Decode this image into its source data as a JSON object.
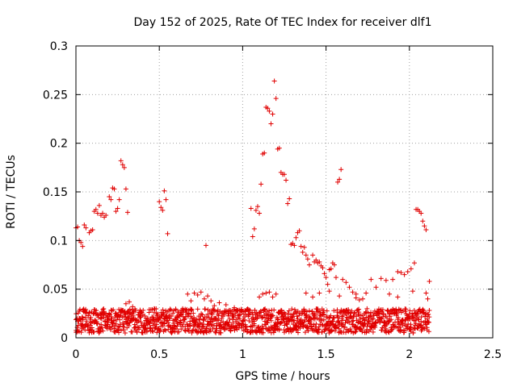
{
  "chart_data": {
    "type": "scatter",
    "title": "Day 152 of 2025, Rate Of TEC Index for receiver dlf1",
    "xlabel": "GPS time / hours",
    "ylabel": "ROTI / TECUs",
    "xlim": [
      0,
      2.5
    ],
    "ylim": [
      0,
      0.3
    ],
    "x_ticks": [
      0,
      0.5,
      1,
      1.5,
      2,
      2.5
    ],
    "x_tick_labels": [
      "0",
      "0.5",
      "1",
      "1.5",
      "2",
      "2.5"
    ],
    "y_ticks": [
      0,
      0.05,
      0.1,
      0.15,
      0.2,
      0.25,
      0.3
    ],
    "y_tick_labels": [
      "0",
      "0.05",
      "0.1",
      "0.15",
      "0.2",
      "0.25",
      "0.3"
    ],
    "grid": true,
    "marker": "plus",
    "marker_color": "#e00000",
    "series": [
      {
        "name": "ROTI",
        "points": [
          [
            0.0,
            0.113
          ],
          [
            0.01,
            0.114
          ],
          [
            0.02,
            0.1
          ],
          [
            0.03,
            0.098
          ],
          [
            0.04,
            0.094
          ],
          [
            0.05,
            0.116
          ],
          [
            0.06,
            0.113
          ],
          [
            0.08,
            0.108
          ],
          [
            0.09,
            0.11
          ],
          [
            0.1,
            0.111
          ],
          [
            0.11,
            0.13
          ],
          [
            0.12,
            0.132
          ],
          [
            0.13,
            0.128
          ],
          [
            0.14,
            0.136
          ],
          [
            0.15,
            0.126
          ],
          [
            0.16,
            0.128
          ],
          [
            0.17,
            0.124
          ],
          [
            0.18,
            0.126
          ],
          [
            0.2,
            0.145
          ],
          [
            0.21,
            0.142
          ],
          [
            0.22,
            0.154
          ],
          [
            0.23,
            0.153
          ],
          [
            0.24,
            0.13
          ],
          [
            0.25,
            0.133
          ],
          [
            0.26,
            0.142
          ],
          [
            0.27,
            0.182
          ],
          [
            0.28,
            0.178
          ],
          [
            0.29,
            0.175
          ],
          [
            0.3,
            0.153
          ],
          [
            0.31,
            0.129
          ],
          [
            0.5,
            0.14
          ],
          [
            0.51,
            0.134
          ],
          [
            0.52,
            0.131
          ],
          [
            0.53,
            0.151
          ],
          [
            0.54,
            0.142
          ],
          [
            0.55,
            0.107
          ],
          [
            0.78,
            0.095
          ],
          [
            0.67,
            0.045
          ],
          [
            0.69,
            0.038
          ],
          [
            0.71,
            0.046
          ],
          [
            0.73,
            0.044
          ],
          [
            0.75,
            0.047
          ],
          [
            0.77,
            0.04
          ],
          [
            0.79,
            0.043
          ],
          [
            0.81,
            0.038
          ],
          [
            0.83,
            0.033
          ],
          [
            0.86,
            0.036
          ],
          [
            0.9,
            0.034
          ],
          [
            0.95,
            0.031
          ],
          [
            1.05,
            0.133
          ],
          [
            1.06,
            0.104
          ],
          [
            1.07,
            0.112
          ],
          [
            1.08,
            0.131
          ],
          [
            1.09,
            0.135
          ],
          [
            1.1,
            0.128
          ],
          [
            1.11,
            0.158
          ],
          [
            1.12,
            0.189
          ],
          [
            1.13,
            0.19
          ],
          [
            1.14,
            0.237
          ],
          [
            1.15,
            0.236
          ],
          [
            1.16,
            0.233
          ],
          [
            1.17,
            0.22
          ],
          [
            1.18,
            0.23
          ],
          [
            1.19,
            0.264
          ],
          [
            1.2,
            0.246
          ],
          [
            1.21,
            0.194
          ],
          [
            1.22,
            0.195
          ],
          [
            1.23,
            0.17
          ],
          [
            1.24,
            0.168
          ],
          [
            1.25,
            0.168
          ],
          [
            1.26,
            0.162
          ],
          [
            1.27,
            0.138
          ],
          [
            1.28,
            0.143
          ],
          [
            1.29,
            0.096
          ],
          [
            1.3,
            0.097
          ],
          [
            1.31,
            0.095
          ],
          [
            1.32,
            0.103
          ],
          [
            1.33,
            0.108
          ],
          [
            1.34,
            0.11
          ],
          [
            1.35,
            0.094
          ],
          [
            1.36,
            0.088
          ],
          [
            1.37,
            0.093
          ],
          [
            1.38,
            0.085
          ],
          [
            1.39,
            0.081
          ],
          [
            1.4,
            0.075
          ],
          [
            1.42,
            0.085
          ],
          [
            1.43,
            0.078
          ],
          [
            1.44,
            0.08
          ],
          [
            1.45,
            0.077
          ],
          [
            1.46,
            0.078
          ],
          [
            1.47,
            0.074
          ],
          [
            1.48,
            0.072
          ],
          [
            1.49,
            0.066
          ],
          [
            1.5,
            0.062
          ],
          [
            1.51,
            0.055
          ],
          [
            1.52,
            0.07
          ],
          [
            1.53,
            0.071
          ],
          [
            1.54,
            0.077
          ],
          [
            1.55,
            0.075
          ],
          [
            1.56,
            0.062
          ],
          [
            1.57,
            0.16
          ],
          [
            1.58,
            0.163
          ],
          [
            1.59,
            0.173
          ],
          [
            1.6,
            0.06
          ],
          [
            1.62,
            0.057
          ],
          [
            1.64,
            0.052
          ],
          [
            1.66,
            0.047
          ],
          [
            1.68,
            0.041
          ],
          [
            1.7,
            0.039
          ],
          [
            1.74,
            0.046
          ],
          [
            1.77,
            0.06
          ],
          [
            1.8,
            0.052
          ],
          [
            1.83,
            0.061
          ],
          [
            1.86,
            0.059
          ],
          [
            1.9,
            0.06
          ],
          [
            1.93,
            0.068
          ],
          [
            1.95,
            0.067
          ],
          [
            1.97,
            0.065
          ],
          [
            1.99,
            0.068
          ],
          [
            2.01,
            0.071
          ],
          [
            2.02,
            0.048
          ],
          [
            2.03,
            0.077
          ],
          [
            2.04,
            0.132
          ],
          [
            2.05,
            0.132
          ],
          [
            2.06,
            0.13
          ],
          [
            2.07,
            0.128
          ],
          [
            2.08,
            0.12
          ],
          [
            2.09,
            0.115
          ],
          [
            2.1,
            0.111
          ],
          [
            2.11,
            0.04
          ],
          [
            2.12,
            0.058
          ],
          [
            1.1,
            0.042
          ],
          [
            1.12,
            0.045
          ],
          [
            1.14,
            0.046
          ],
          [
            1.16,
            0.047
          ],
          [
            1.18,
            0.042
          ],
          [
            1.2,
            0.045
          ],
          [
            1.38,
            0.046
          ],
          [
            1.42,
            0.042
          ],
          [
            1.46,
            0.046
          ],
          [
            1.52,
            0.048
          ],
          [
            1.58,
            0.043
          ],
          [
            1.68,
            0.045
          ],
          [
            1.72,
            0.04
          ],
          [
            1.88,
            0.045
          ],
          [
            1.93,
            0.042
          ],
          [
            2.1,
            0.046
          ],
          [
            0.3,
            0.035
          ],
          [
            0.32,
            0.037
          ],
          [
            0.34,
            0.032
          ]
        ]
      }
    ],
    "dense_band": {
      "x_range": [
        0.0,
        2.12
      ],
      "y_range": [
        0.005,
        0.03
      ],
      "note": "continuous band of points between x=0 and x≈2.12"
    }
  }
}
